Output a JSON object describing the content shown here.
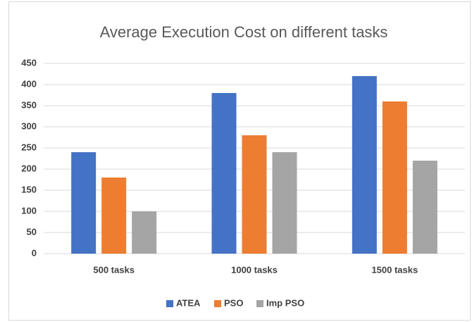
{
  "chart_data": {
    "type": "bar",
    "title": "Average Execution Cost on different tasks",
    "categories": [
      "500 tasks",
      "1000 tasks",
      "1500 tasks"
    ],
    "series": [
      {
        "name": "ATEA",
        "color": "#4472c4",
        "values": [
          240,
          380,
          420
        ]
      },
      {
        "name": "PSO",
        "color": "#ed7d31",
        "values": [
          180,
          280,
          360
        ]
      },
      {
        "name": "Imp PSO",
        "color": "#a5a5a5",
        "values": [
          100,
          240,
          220
        ]
      }
    ],
    "ylim": [
      0,
      450
    ],
    "yticks": [
      0,
      50,
      100,
      150,
      200,
      250,
      300,
      350,
      400,
      450
    ],
    "grid": true,
    "legend": "bottom"
  }
}
